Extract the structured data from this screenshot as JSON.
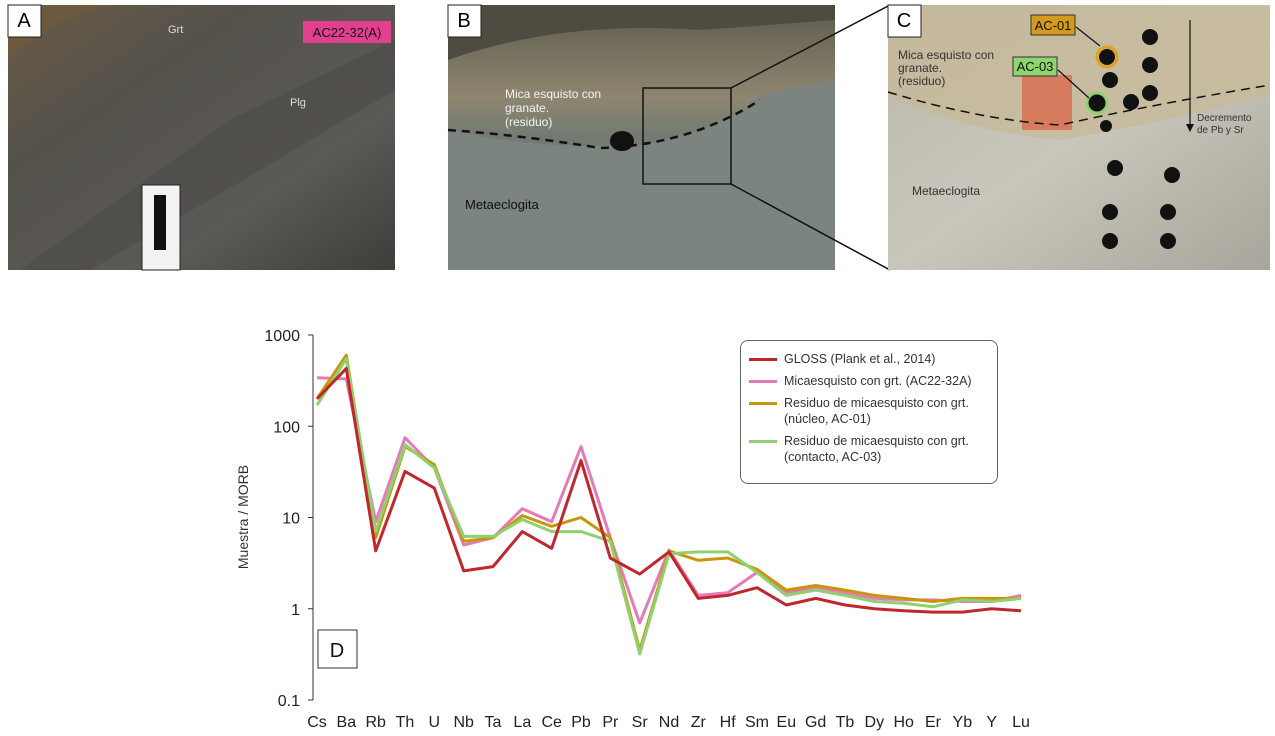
{
  "panels": [
    {
      "label": "A",
      "annotations": [
        "AC22-32(A)",
        "Grt",
        "Plg"
      ]
    },
    {
      "label": "B",
      "annotations": [
        "Mica esquisto con",
        "granate.",
        "(residuo)",
        "Metaeclogita"
      ]
    },
    {
      "label": "C",
      "annotations": [
        "AC-01",
        "AC-03",
        "Mica esquisto con",
        "granate.",
        "(residuo)",
        "Metaeclogita",
        "Decremento",
        "de Pb y Sr"
      ]
    }
  ],
  "chart_data": {
    "type": "line",
    "panel_label": "D",
    "y_label": "Muestra / MORB",
    "log_y": true,
    "ylim": [
      0.1,
      1000
    ],
    "yticks": [
      0.1,
      1,
      10,
      100,
      1000
    ],
    "categories": [
      "Cs",
      "Ba",
      "Rb",
      "Th",
      "U",
      "Nb",
      "Ta",
      "La",
      "Ce",
      "Pb",
      "Pr",
      "Sr",
      "Nd",
      "Zr",
      "Hf",
      "Sm",
      "Eu",
      "Gd",
      "Tb",
      "Dy",
      "Ho",
      "Er",
      "Yb",
      "Y",
      "Lu"
    ],
    "series": [
      {
        "name": "Micaesquisto con grt. (AC22-32A)",
        "color": "#e57ab8",
        "values": [
          340,
          330,
          9,
          75,
          35,
          5,
          6,
          12.5,
          9,
          60,
          6,
          0.7,
          4.4,
          1.4,
          1.5,
          2.5,
          1.5,
          1.7,
          1.5,
          1.3,
          1.25,
          1.25,
          1.2,
          1.2,
          1.4
        ]
      },
      {
        "name": "Residuo de micaesquisto con grt. (núcleo, AC-01)",
        "color": "#c8960c",
        "values": [
          200,
          600,
          6,
          60,
          38,
          5.5,
          6,
          10.5,
          8,
          10,
          6,
          0.35,
          4.3,
          3.4,
          3.6,
          2.7,
          1.6,
          1.8,
          1.6,
          1.4,
          1.3,
          1.2,
          1.3,
          1.3,
          1.3
        ]
      },
      {
        "name": "Residuo de micaesquisto con grt. (contacto, AC-03)",
        "color": "#8fd16f",
        "values": [
          170,
          550,
          7,
          63,
          35,
          6.2,
          6.2,
          9.5,
          7,
          7,
          5.5,
          0.32,
          4.0,
          4.2,
          4.2,
          2.5,
          1.4,
          1.6,
          1.4,
          1.2,
          1.15,
          1.05,
          1.25,
          1.2,
          1.3
        ]
      },
      {
        "name": "GLOSS (Plank et al., 2014)",
        "color": "#c0272d",
        "values": [
          200,
          430,
          4.3,
          32,
          21,
          2.6,
          2.9,
          7,
          4.6,
          42,
          3.6,
          2.4,
          4.2,
          1.3,
          1.4,
          1.7,
          1.1,
          1.3,
          1.1,
          1.0,
          0.95,
          0.92,
          0.92,
          1.0,
          0.95
        ]
      }
    ],
    "legend_order": [
      3,
      0,
      1,
      2
    ]
  }
}
